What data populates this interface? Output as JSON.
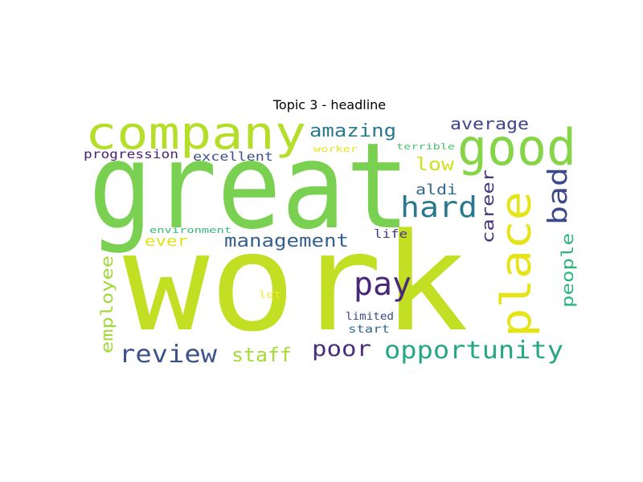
{
  "title": "Topic 3 - headline",
  "colors": {
    "background": "#ffffff",
    "palette": "viridis"
  },
  "words": [
    {
      "text": "work",
      "color": "#c2df23"
    },
    {
      "text": "great",
      "color": "#7ad151"
    },
    {
      "text": "company",
      "color": "#b5de2b"
    },
    {
      "text": "good",
      "color": "#86d549"
    },
    {
      "text": "place",
      "color": "#e5e419"
    },
    {
      "text": "hard",
      "color": "#2a788e"
    },
    {
      "text": "pay",
      "color": "#482878"
    },
    {
      "text": "opportunity",
      "color": "#26a784"
    },
    {
      "text": "review",
      "color": "#3b528b"
    },
    {
      "text": "bad",
      "color": "#3e4989"
    },
    {
      "text": "management",
      "color": "#35608d"
    },
    {
      "text": "amazing",
      "color": "#2a788e"
    },
    {
      "text": "poor",
      "color": "#472d7b"
    },
    {
      "text": "staff",
      "color": "#a5db36"
    },
    {
      "text": "average",
      "color": "#414487"
    },
    {
      "text": "employee",
      "color": "#a0da39"
    },
    {
      "text": "career",
      "color": "#46337f"
    },
    {
      "text": "people",
      "color": "#2fb47c"
    },
    {
      "text": "low",
      "color": "#d0e11c"
    },
    {
      "text": "aldi",
      "color": "#31688e"
    },
    {
      "text": "excellent",
      "color": "#3b528b"
    },
    {
      "text": "progression",
      "color": "#482475"
    },
    {
      "text": "ever",
      "color": "#dde318"
    },
    {
      "text": "life",
      "color": "#443983"
    },
    {
      "text": "environment",
      "color": "#35b779"
    },
    {
      "text": "terrible",
      "color": "#4ac16d"
    },
    {
      "text": "worker",
      "color": "#eae51a"
    },
    {
      "text": "limited",
      "color": "#3e4989"
    },
    {
      "text": "start",
      "color": "#31688e"
    },
    {
      "text": "lot",
      "color": "#fde725"
    }
  ]
}
